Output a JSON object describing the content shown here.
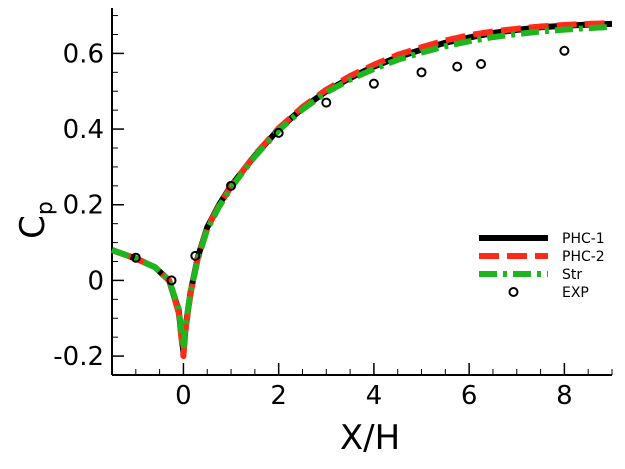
{
  "chart_data": {
    "type": "line",
    "xlabel": "X/H",
    "ylabel": "C",
    "ylabel_subscript": "p",
    "xlim": [
      -1.5,
      9
    ],
    "ylim": [
      -0.25,
      0.72
    ],
    "x_ticks": [
      0,
      2,
      4,
      6,
      8
    ],
    "y_ticks": [
      -0.2,
      0,
      0.2,
      0.4,
      0.6
    ],
    "x_tick_labels": [
      "0",
      "2",
      "4",
      "6",
      "8"
    ],
    "y_tick_labels": [
      "-0.2",
      "0",
      "0.2",
      "0.4",
      "0.6"
    ],
    "legend_position": "right",
    "series": [
      {
        "name": "PHC-1",
        "style": "solid",
        "color": "#000000",
        "x": [
          -1.5,
          -1.0,
          -0.6,
          -0.3,
          -0.1,
          0.0,
          0.05,
          0.15,
          0.3,
          0.5,
          0.75,
          1.0,
          1.5,
          2.0,
          2.5,
          3.0,
          3.5,
          4.0,
          4.5,
          5.0,
          5.5,
          6.0,
          6.5,
          7.0,
          7.5,
          8.0,
          8.5,
          9.0
        ],
        "y": [
          0.08,
          0.058,
          0.035,
          0.0,
          -0.08,
          -0.19,
          -0.12,
          -0.03,
          0.06,
          0.14,
          0.2,
          0.25,
          0.33,
          0.4,
          0.455,
          0.5,
          0.535,
          0.565,
          0.59,
          0.61,
          0.628,
          0.642,
          0.654,
          0.662,
          0.669,
          0.673,
          0.676,
          0.678
        ]
      },
      {
        "name": "PHC-2",
        "style": "dash",
        "color": "#ff2a1a",
        "x": [
          -1.5,
          -1.0,
          -0.6,
          -0.3,
          -0.1,
          0.0,
          0.05,
          0.15,
          0.3,
          0.5,
          0.75,
          1.0,
          1.5,
          2.0,
          2.5,
          3.0,
          3.5,
          4.0,
          4.5,
          5.0,
          5.5,
          6.0,
          6.5,
          7.0,
          7.5,
          8.0,
          8.5,
          9.0
        ],
        "y": [
          0.08,
          0.058,
          0.035,
          0.0,
          -0.085,
          -0.2,
          -0.125,
          -0.035,
          0.058,
          0.138,
          0.198,
          0.248,
          0.332,
          0.402,
          0.458,
          0.504,
          0.54,
          0.57,
          0.596,
          0.616,
          0.634,
          0.648,
          0.658,
          0.665,
          0.671,
          0.675,
          0.678,
          0.68
        ]
      },
      {
        "name": "Str",
        "style": "dashdot",
        "color": "#1fb51f",
        "x": [
          -1.5,
          -1.0,
          -0.6,
          -0.3,
          -0.1,
          0.0,
          0.05,
          0.15,
          0.3,
          0.5,
          0.75,
          1.0,
          1.5,
          2.0,
          2.5,
          3.0,
          3.5,
          4.0,
          4.5,
          5.0,
          5.5,
          6.0,
          6.5,
          7.0,
          7.5,
          8.0,
          8.5,
          9.0
        ],
        "y": [
          0.08,
          0.058,
          0.035,
          0.0,
          -0.075,
          -0.18,
          -0.115,
          -0.03,
          0.055,
          0.135,
          0.195,
          0.245,
          0.328,
          0.397,
          0.452,
          0.497,
          0.531,
          0.559,
          0.583,
          0.602,
          0.619,
          0.632,
          0.643,
          0.651,
          0.658,
          0.663,
          0.667,
          0.67
        ]
      },
      {
        "name": "EXP",
        "style": "marker",
        "color": "#000000",
        "x": [
          -1.0,
          -0.25,
          0.25,
          1.0,
          2.0,
          3.0,
          4.0,
          5.0,
          5.75,
          6.25,
          8.0
        ],
        "y": [
          0.06,
          0.0,
          0.065,
          0.25,
          0.39,
          0.47,
          0.52,
          0.55,
          0.565,
          0.572,
          0.607
        ]
      }
    ]
  }
}
